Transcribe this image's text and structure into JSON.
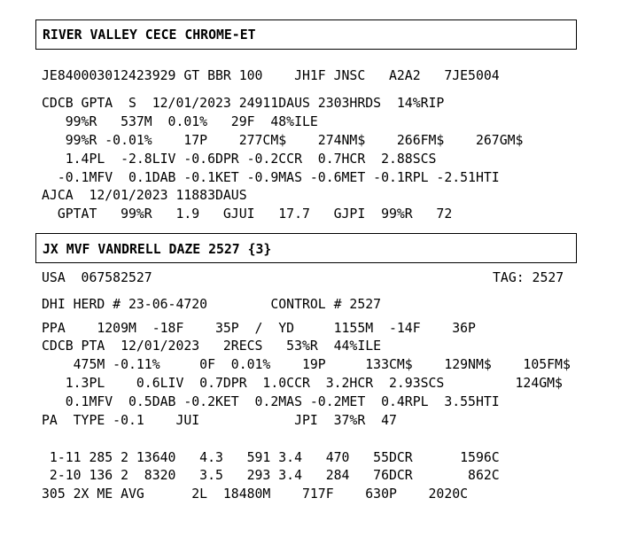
{
  "header1": {
    "title": "RIVER VALLEY CECE CHROME-ET"
  },
  "sire": {
    "ids": "JE840003012423929 GT BBR 100    JH1F JNSC   A2A2   7JE5004",
    "line1": "CDCB GPTA  S  12/01/2023 24911DAUS 2303HRDS  14%RIP",
    "line2": "   99%R   537M  0.01%   29F  48%ILE",
    "line3": "   99%R -0.01%    17P    277CM$    274NM$    266FM$    267GM$",
    "line4": "   1.4PL  -2.8LIV -0.6DPR -0.2CCR  0.7HCR  2.88SCS",
    "line5": "  -0.1MFV  0.1DAB -0.1KET -0.9MAS -0.6MET -0.1RPL -2.51HTI",
    "line6": "AJCA  12/01/2023 11883DAUS",
    "line7": "  GPTAT   99%R   1.9   GJUI   17.7   GJPI  99%R   72"
  },
  "header2": {
    "title": "JX MVF VANDRELL DAZE 2527 {3}"
  },
  "cow": {
    "usa": "USA  067582527",
    "tag": "TAG: 2527",
    "herd": "DHI HERD # 23-06-4720        CONTROL # 2527",
    "ppa": "PPA    1209M  -18F    35P  /  YD     1155M  -14F    36P",
    "pta1": "CDCB PTA  12/01/2023   2RECS   53%R  44%ILE",
    "pta2": "    475M -0.11%     0F  0.01%    19P     133CM$    129NM$    105FM$",
    "pta3": "   1.3PL    0.6LIV  0.7DPR  1.0CCR  3.2HCR  2.93SCS         124GM$",
    "pta4": "   0.1MFV  0.5DAB -0.2KET  0.2MAS -0.2MET  0.4RPL  3.55HTI",
    "pa": "PA  TYPE -0.1    JUI            JPI  37%R  47",
    "lact1": " 1-11 285 2 13640   4.3   591 3.4   470   55DCR      1596C",
    "lact2": " 2-10 136 2  8320   3.5   293 3.4   284   76DCR       862C",
    "avg": "305 2X ME AVG      2L  18480M    717F    630P    2020C"
  }
}
